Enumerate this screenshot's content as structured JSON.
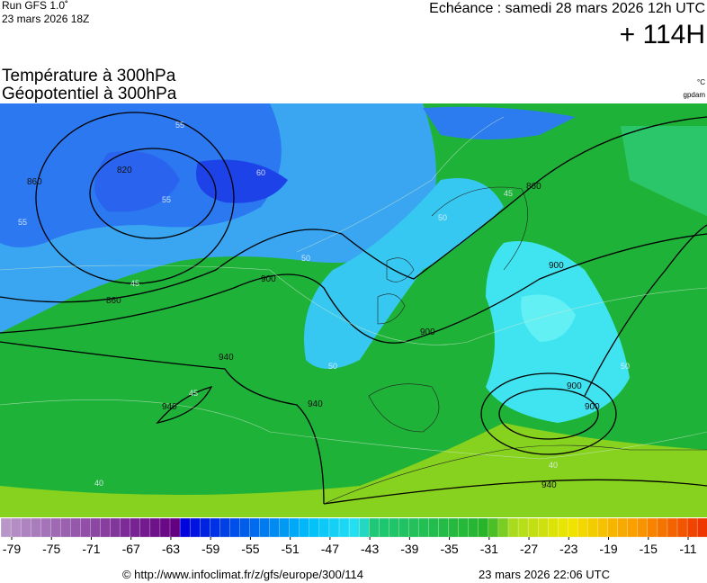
{
  "header": {
    "run": "Run GFS 1.0˚",
    "run_date": "23 mars 2026 18Z",
    "echeance": "Echéance : samedi 28 mars 2026 12h UTC",
    "lead": "+ 114H",
    "title_line1": "Température à 300hPa",
    "title_line2": "Géopotentiel à 300hPa",
    "unit_temp": "°C",
    "unit_geo": "gpdam"
  },
  "map": {
    "contour_labels": [
      "820",
      "860",
      "860",
      "900",
      "900",
      "940",
      "940",
      "900",
      "860",
      "900",
      "940",
      "900",
      "940"
    ],
    "temp_labels": [
      "55",
      "60",
      "55",
      "50",
      "45",
      "55",
      "50",
      "50",
      "45",
      "45",
      "40",
      "40",
      "50"
    ]
  },
  "colorbar": {
    "ticks": [
      -79,
      -75,
      -71,
      -67,
      -63,
      -59,
      -55,
      -51,
      -47,
      -43,
      -39,
      -35,
      -31,
      -27,
      -23,
      -19,
      -15,
      -11
    ]
  },
  "footer": {
    "url": "© http://www.infoclimat.fr/z/gfs/europe/300/114",
    "generated": "23 mars 2026 22:06 UTC"
  }
}
